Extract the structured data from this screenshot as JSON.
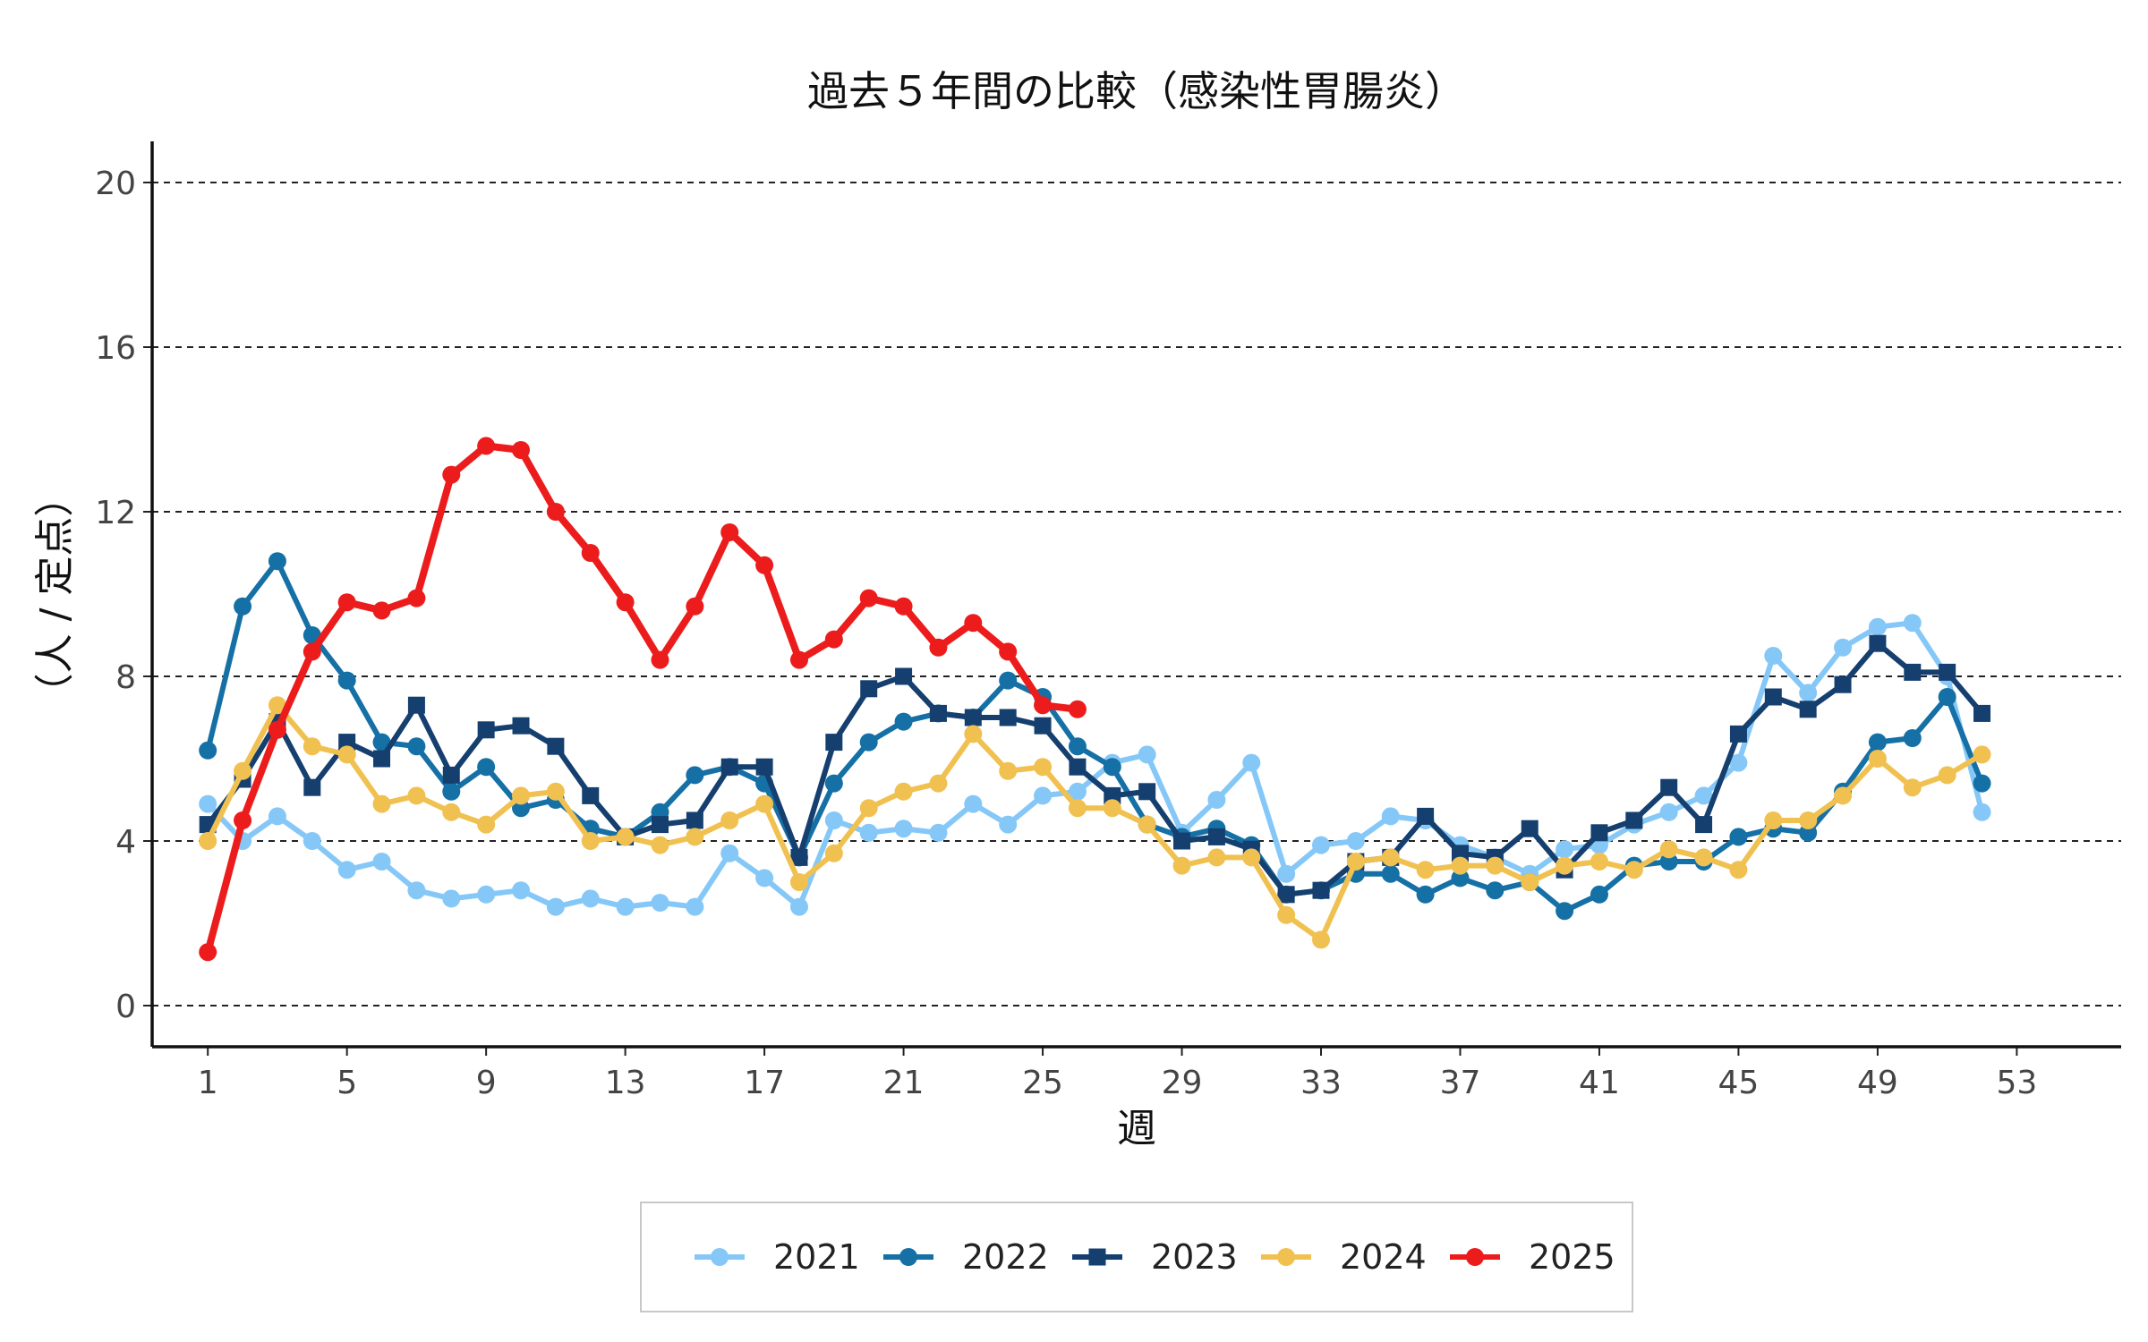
{
  "chart_data": {
    "type": "line",
    "title": "過去５年間の比較（感染性胃腸炎）",
    "xlabel": "週",
    "ylabel": "（人 / 定点）",
    "xlim": [
      -0.6,
      56
    ],
    "ylim": [
      -1,
      21
    ],
    "x_ticks": [
      1,
      5,
      9,
      13,
      17,
      21,
      25,
      29,
      33,
      37,
      41,
      45,
      49,
      53
    ],
    "y_ticks": [
      0,
      4,
      8,
      12,
      16,
      20
    ],
    "grid": "horizontal-dashed",
    "legend_position": "bottom",
    "series": [
      {
        "name": "2021",
        "color": "#85C8F8",
        "marker": "circle",
        "x": [
          1,
          2,
          3,
          4,
          5,
          6,
          7,
          8,
          9,
          10,
          11,
          12,
          13,
          14,
          15,
          16,
          17,
          18,
          19,
          20,
          21,
          22,
          23,
          24,
          25,
          26,
          27,
          28,
          29,
          30,
          31,
          32,
          33,
          34,
          35,
          36,
          37,
          38,
          39,
          40,
          41,
          42,
          43,
          44,
          45,
          46,
          47,
          48,
          49,
          50,
          51,
          52
        ],
        "values": [
          4.9,
          4.0,
          4.6,
          4.0,
          3.3,
          3.5,
          2.8,
          2.6,
          2.7,
          2.8,
          2.4,
          2.6,
          2.4,
          2.5,
          2.4,
          3.7,
          3.1,
          2.4,
          4.5,
          4.2,
          4.3,
          4.2,
          4.9,
          4.4,
          5.1,
          5.2,
          5.9,
          6.1,
          4.2,
          5.0,
          5.9,
          3.2,
          3.9,
          4.0,
          4.6,
          4.5,
          3.9,
          3.6,
          3.2,
          3.8,
          3.9,
          4.4,
          4.7,
          5.1,
          5.9,
          8.5,
          7.6,
          8.7,
          9.2,
          9.3,
          8.0,
          4.7
        ]
      },
      {
        "name": "2022",
        "color": "#1570A6",
        "marker": "circle",
        "x": [
          1,
          2,
          3,
          4,
          5,
          6,
          7,
          8,
          9,
          10,
          11,
          12,
          13,
          14,
          15,
          16,
          17,
          18,
          19,
          20,
          21,
          22,
          23,
          24,
          25,
          26,
          27,
          28,
          29,
          30,
          31,
          32,
          33,
          34,
          35,
          36,
          37,
          38,
          39,
          40,
          41,
          42,
          43,
          44,
          45,
          46,
          47,
          48,
          49,
          50,
          51,
          52
        ],
        "values": [
          6.2,
          9.7,
          10.8,
          9.0,
          7.9,
          6.4,
          6.3,
          5.2,
          5.8,
          4.8,
          5.0,
          4.3,
          4.1,
          4.7,
          5.6,
          5.8,
          5.4,
          3.6,
          5.4,
          6.4,
          6.9,
          7.1,
          7.0,
          7.9,
          7.5,
          6.3,
          5.8,
          4.4,
          4.1,
          4.3,
          3.9,
          2.7,
          2.8,
          3.2,
          3.2,
          2.7,
          3.1,
          2.8,
          3.0,
          2.3,
          2.7,
          3.4,
          3.5,
          3.5,
          4.1,
          4.3,
          4.2,
          5.2,
          6.4,
          6.5,
          7.5,
          5.4
        ]
      },
      {
        "name": "2023",
        "color": "#153F6E",
        "marker": "square",
        "x": [
          1,
          2,
          3,
          4,
          5,
          6,
          7,
          8,
          9,
          10,
          11,
          12,
          13,
          14,
          15,
          16,
          17,
          18,
          19,
          20,
          21,
          22,
          23,
          24,
          25,
          26,
          27,
          28,
          29,
          30,
          31,
          32,
          33,
          34,
          35,
          36,
          37,
          38,
          39,
          40,
          41,
          42,
          43,
          44,
          45,
          46,
          47,
          48,
          49,
          50,
          51,
          52
        ],
        "values": [
          4.4,
          5.5,
          6.9,
          5.3,
          6.4,
          6.0,
          7.3,
          5.6,
          6.7,
          6.8,
          6.3,
          5.1,
          4.1,
          4.4,
          4.5,
          5.8,
          5.8,
          3.6,
          6.4,
          7.7,
          8.0,
          7.1,
          7.0,
          7.0,
          6.8,
          5.8,
          5.1,
          5.2,
          4.0,
          4.1,
          3.8,
          2.7,
          2.8,
          3.5,
          3.6,
          4.6,
          3.7,
          3.6,
          4.3,
          3.3,
          4.2,
          4.5,
          5.3,
          4.4,
          6.6,
          7.5,
          7.2,
          7.8,
          8.8,
          8.1,
          8.1,
          7.1
        ]
      },
      {
        "name": "2024",
        "color": "#F0C150",
        "marker": "circle",
        "x": [
          1,
          2,
          3,
          4,
          5,
          6,
          7,
          8,
          9,
          10,
          11,
          12,
          13,
          14,
          15,
          16,
          17,
          18,
          19,
          20,
          21,
          22,
          23,
          24,
          25,
          26,
          27,
          28,
          29,
          30,
          31,
          32,
          33,
          34,
          35,
          36,
          37,
          38,
          39,
          40,
          41,
          42,
          43,
          44,
          45,
          46,
          47,
          48,
          49,
          50,
          51,
          52
        ],
        "values": [
          4.0,
          5.7,
          7.3,
          6.3,
          6.1,
          4.9,
          5.1,
          4.7,
          4.4,
          5.1,
          5.2,
          4.0,
          4.1,
          3.9,
          4.1,
          4.5,
          4.9,
          3.0,
          3.7,
          4.8,
          5.2,
          5.4,
          6.6,
          5.7,
          5.8,
          4.8,
          4.8,
          4.4,
          3.4,
          3.6,
          3.6,
          2.2,
          1.6,
          3.5,
          3.6,
          3.3,
          3.4,
          3.4,
          3.0,
          3.4,
          3.5,
          3.3,
          3.8,
          3.6,
          3.3,
          4.5,
          4.5,
          5.1,
          6.0,
          5.3,
          5.6,
          6.1
        ]
      },
      {
        "name": "2025",
        "color": "#EC1C1C",
        "marker": "circle",
        "x": [
          1,
          2,
          3,
          4,
          5,
          6,
          7,
          8,
          9,
          10,
          11,
          12,
          13,
          14,
          15,
          16,
          17,
          18,
          19,
          20,
          21,
          22,
          23,
          24,
          25,
          26
        ],
        "values": [
          1.3,
          4.5,
          6.7,
          8.6,
          9.8,
          9.6,
          9.9,
          12.9,
          13.6,
          13.5,
          12.0,
          11.0,
          9.8,
          8.4,
          9.7,
          11.5,
          10.7,
          8.4,
          8.9,
          9.9,
          9.7,
          8.7,
          9.3,
          8.6,
          7.3,
          7.2
        ]
      }
    ]
  }
}
